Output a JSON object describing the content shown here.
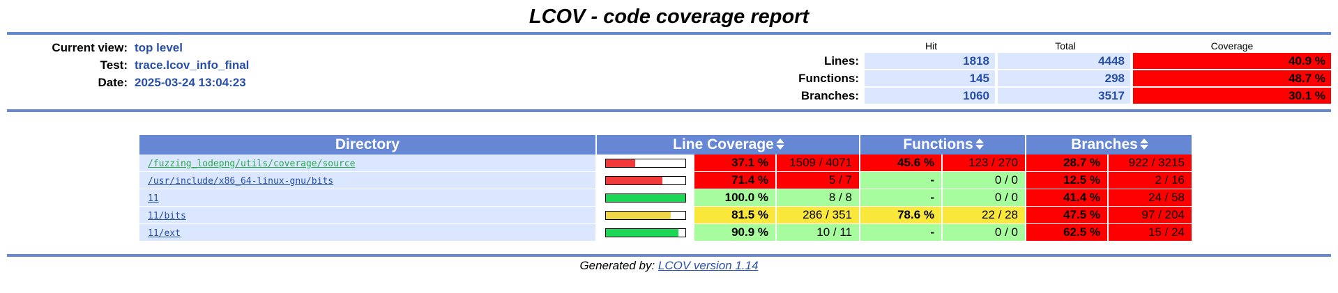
{
  "title": "LCOV - code coverage report",
  "header": {
    "info": [
      {
        "label": "Current view:",
        "value": "top level"
      },
      {
        "label": "Test:",
        "value": "trace.lcov_info_final"
      },
      {
        "label": "Date:",
        "value": "2025-03-24 13:04:23"
      }
    ],
    "col_hit": "Hit",
    "col_total": "Total",
    "col_coverage": "Coverage",
    "summary": [
      {
        "label": "Lines:",
        "hit": "1818",
        "total": "4448",
        "coverage": "40.9 %"
      },
      {
        "label": "Functions:",
        "hit": "145",
        "total": "298",
        "coverage": "48.7 %"
      },
      {
        "label": "Branches:",
        "hit": "1060",
        "total": "3517",
        "coverage": "30.1 %"
      }
    ]
  },
  "table": {
    "headers": {
      "directory": "Directory",
      "line": "Line Coverage",
      "functions": "Functions",
      "branches": "Branches"
    },
    "rows": [
      {
        "name": "/fuzzing_lodepng/utils/coverage/source",
        "line_fraction": 0.371,
        "line_pct": "37.1 %",
        "line_num": "1509 / 4071",
        "line_class": "lo",
        "fn_pct": "45.6 %",
        "fn_num": "123 / 270",
        "fn_class": "lo",
        "br_pct": "28.7 %",
        "br_num": "922 / 3215",
        "br_class": "lo"
      },
      {
        "name": "/usr/include/x86_64-linux-gnu/bits",
        "line_fraction": 0.714,
        "line_pct": "71.4 %",
        "line_num": "5 / 7",
        "line_class": "lo",
        "fn_pct": "-",
        "fn_num": "0 / 0",
        "fn_class": "hi",
        "br_pct": "12.5 %",
        "br_num": "2 / 16",
        "br_class": "lo"
      },
      {
        "name": "11",
        "line_fraction": 1.0,
        "line_pct": "100.0 %",
        "line_num": "8 / 8",
        "line_class": "hi",
        "fn_pct": "-",
        "fn_num": "0 / 0",
        "fn_class": "hi",
        "br_pct": "41.4 %",
        "br_num": "24 / 58",
        "br_class": "lo"
      },
      {
        "name": "11/bits",
        "line_fraction": 0.815,
        "line_pct": "81.5 %",
        "line_num": "286 / 351",
        "line_class": "med",
        "fn_pct": "78.6 %",
        "fn_num": "22 / 28",
        "fn_class": "med",
        "br_pct": "47.5 %",
        "br_num": "97 / 204",
        "br_class": "lo"
      },
      {
        "name": "11/ext",
        "line_fraction": 0.909,
        "line_pct": "90.9 %",
        "line_num": "10 / 11",
        "line_class": "hi",
        "fn_pct": "-",
        "fn_num": "0 / 0",
        "fn_class": "hi",
        "br_pct": "62.5 %",
        "br_num": "15 / 24",
        "br_class": "lo"
      }
    ]
  },
  "colors": {
    "lo": "#ff0000",
    "med": "#f9e73b",
    "hi": "#a7fc9d",
    "bar_lo": "#f23a3a",
    "bar_med": "#f0d74a",
    "bar_hi": "#1cd655",
    "accent": "#6688d4"
  },
  "footer": {
    "prefix": "Generated by: ",
    "link": "LCOV version 1.14"
  }
}
